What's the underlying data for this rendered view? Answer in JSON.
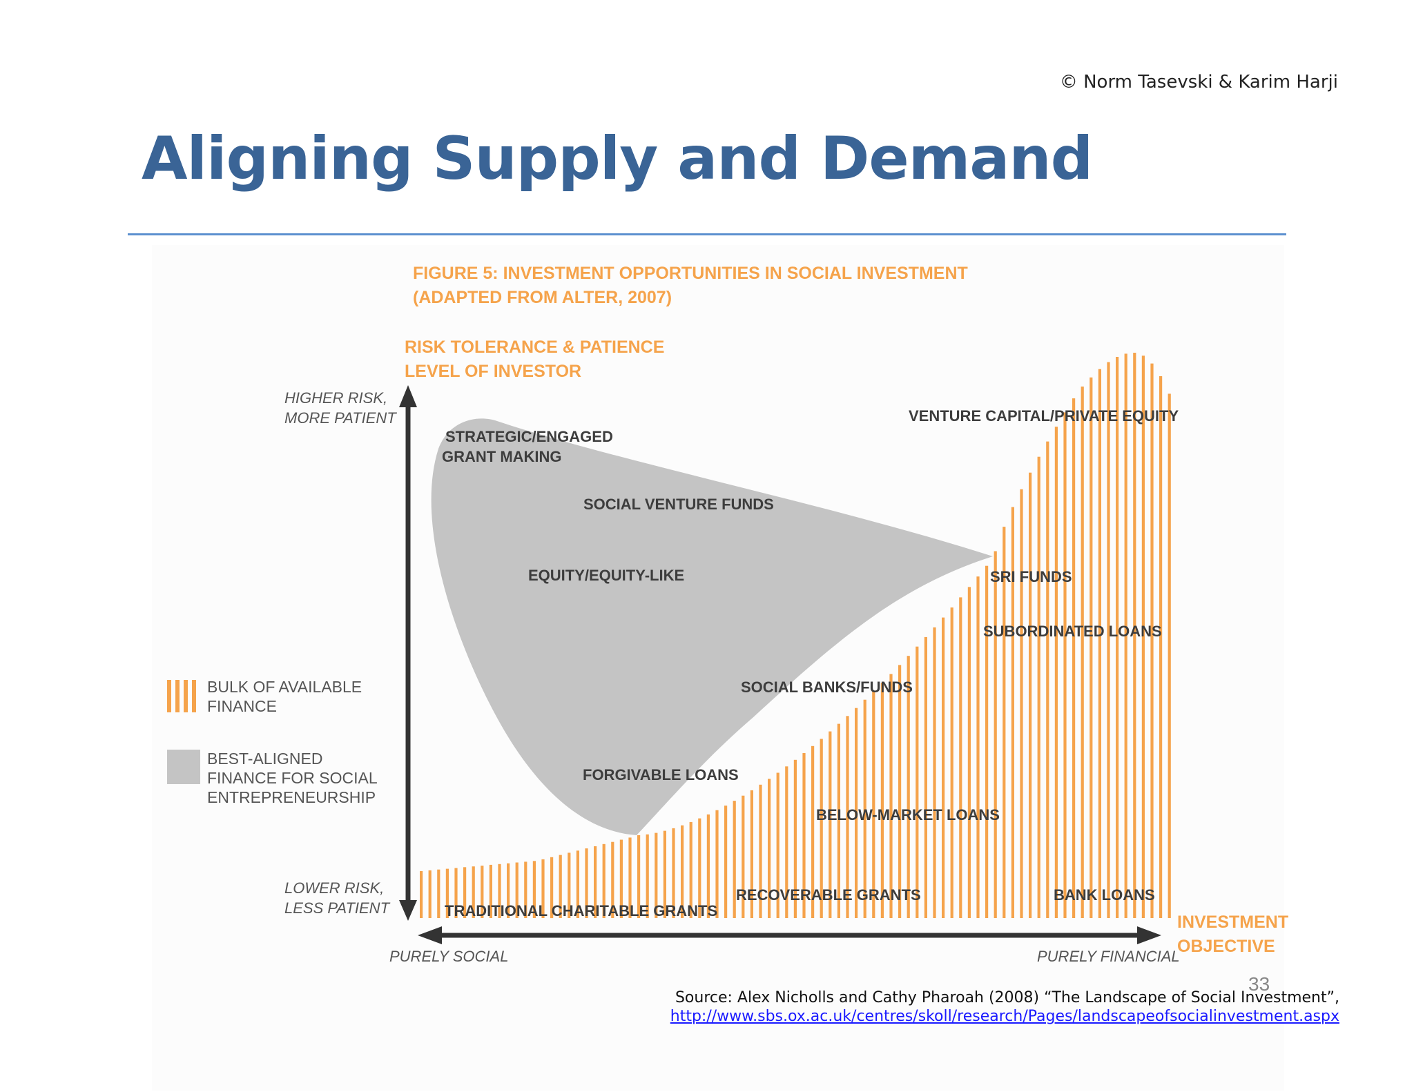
{
  "header": {
    "copyright": "© Norm Tasevski & Karim Harji",
    "title": "Aligning Supply and Demand"
  },
  "figure": {
    "title_line1": "FIGURE 5: INVESTMENT OPPORTUNITIES IN SOCIAL INVESTMENT",
    "title_line2": "(ADAPTED FROM ALTER, 2007)",
    "y_axis_title_line1": "RISK TOLERANCE & PATIENCE",
    "y_axis_title_line2": "LEVEL OF INVESTOR",
    "y_top_line1": "HIGHER RISK,",
    "y_top_line2": "MORE PATIENT",
    "y_bottom_line1": "LOWER RISK,",
    "y_bottom_line2": "LESS PATIENT",
    "x_left": "PURELY SOCIAL",
    "x_right": "PURELY FINANCIAL",
    "x_axis_title_line1": "INVESTMENT",
    "x_axis_title_line2": "OBJECTIVE",
    "legend": {
      "bulk_line1": "BULK OF AVAILABLE",
      "bulk_line2": "FINANCE",
      "best_line1": "BEST-ALIGNED",
      "best_line2": "FINANCE FOR SOCIAL",
      "best_line3": "ENTREPRENEURSHIP"
    },
    "labels": {
      "strategic_line1": "STRATEGIC/ENGAGED",
      "strategic_line2": "GRANT MAKING",
      "social_venture_funds": "SOCIAL VENTURE FUNDS",
      "equity": "EQUITY/EQUITY-LIKE",
      "social_banks": "SOCIAL BANKS/FUNDS",
      "forgivable_loans": "FORGIVABLE LOANS",
      "venture_capital": "VENTURE CAPITAL/PRIVATE EQUITY",
      "sri_funds": "SRI FUNDS",
      "subordinated_loans": "SUBORDINATED LOANS",
      "below_market_loans": "BELOW-MARKET LOANS",
      "recoverable_grants": "RECOVERABLE GRANTS",
      "bank_loans": "BANK LOANS",
      "traditional_grants": "TRADITIONAL CHARITABLE GRANTS"
    },
    "colors": {
      "orange": "#f5a34b",
      "gray_region": "#c4c4c4",
      "axis": "#333333"
    }
  },
  "footer": {
    "page_number": "33",
    "source_text": "Source: Alex Nicholls and Cathy Pharoah (2008) “The Landscape of Social Investment”,",
    "source_link": "http://www.sbs.ox.ac.uk/centres/skoll/research/Pages/landscapeofsocialinvestment.aspx"
  }
}
